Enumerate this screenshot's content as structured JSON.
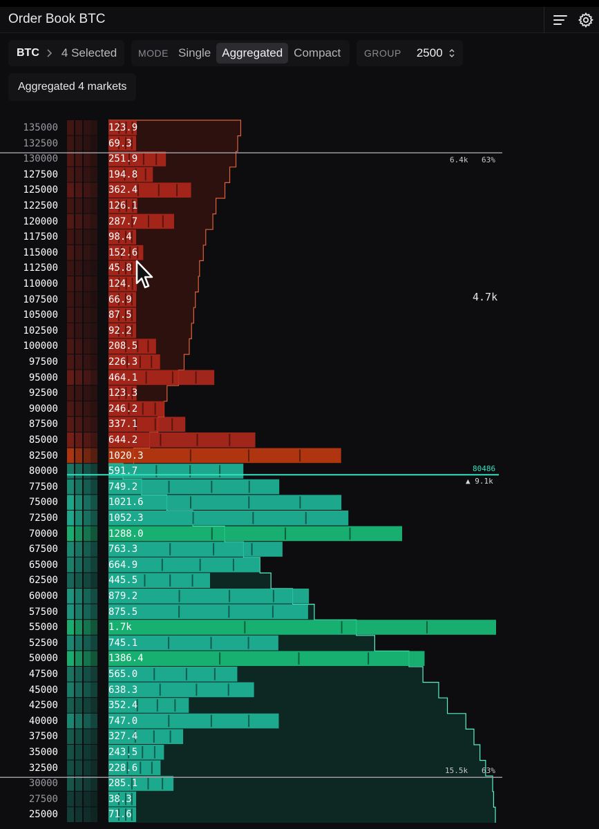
{
  "window": {
    "title": "Order Book BTC"
  },
  "toolbar": {
    "market": "BTC",
    "selection": "4 Selected",
    "mode_label": "MODE",
    "modes": [
      "Single",
      "Aggregated",
      "Compact"
    ],
    "active_mode": "Aggregated",
    "group_label": "GROUP",
    "group_value": "2500"
  },
  "badge": "Aggregated 4 markets",
  "asks": [
    {
      "price": "135000",
      "size": "123.9",
      "major": false
    },
    {
      "price": "132500",
      "size": "69.3",
      "major": false
    },
    {
      "price": "130000",
      "size": "251.9",
      "major": false
    },
    {
      "price": "127500",
      "size": "194.8",
      "major": true
    },
    {
      "price": "125000",
      "size": "362.4",
      "major": true
    },
    {
      "price": "122500",
      "size": "126.1",
      "major": true
    },
    {
      "price": "120000",
      "size": "287.7",
      "major": true
    },
    {
      "price": "117500",
      "size": "98.4",
      "major": true
    },
    {
      "price": "115000",
      "size": "152.6",
      "major": true
    },
    {
      "price": "112500",
      "size": "45.8",
      "major": true
    },
    {
      "price": "110000",
      "size": "124.",
      "major": true
    },
    {
      "price": "107500",
      "size": "66.9",
      "major": true
    },
    {
      "price": "105000",
      "size": "87.5",
      "major": true
    },
    {
      "price": "102500",
      "size": "92.2",
      "major": true
    },
    {
      "price": "100000",
      "size": "208.5",
      "major": true
    },
    {
      "price": "97500",
      "size": "226.3",
      "major": true
    },
    {
      "price": "95000",
      "size": "464.1",
      "major": true
    },
    {
      "price": "92500",
      "size": "123.3",
      "major": true
    },
    {
      "price": "90000",
      "size": "246.2",
      "major": true
    },
    {
      "price": "87500",
      "size": "337.1",
      "major": true
    },
    {
      "price": "85000",
      "size": "644.2",
      "major": true
    },
    {
      "price": "82500",
      "size": "1020.3",
      "major": true
    }
  ],
  "bids": [
    {
      "price": "80000",
      "size": "591.7",
      "major": true
    },
    {
      "price": "77500",
      "size": "749.2",
      "major": true
    },
    {
      "price": "75000",
      "size": "1021.6",
      "major": true
    },
    {
      "price": "72500",
      "size": "1052.3",
      "major": true
    },
    {
      "price": "70000",
      "size": "1288.0",
      "major": true
    },
    {
      "price": "67500",
      "size": "763.3",
      "major": true
    },
    {
      "price": "65000",
      "size": "664.9",
      "major": true
    },
    {
      "price": "62500",
      "size": "445.5",
      "major": true
    },
    {
      "price": "60000",
      "size": "879.2",
      "major": true
    },
    {
      "price": "57500",
      "size": "875.5",
      "major": true
    },
    {
      "price": "55000",
      "size": "1.7k",
      "major": true
    },
    {
      "price": "52500",
      "size": "745.1",
      "major": true
    },
    {
      "price": "50000",
      "size": "1386.4",
      "major": true
    },
    {
      "price": "47500",
      "size": "565.0",
      "major": true
    },
    {
      "price": "45000",
      "size": "638.3",
      "major": true
    },
    {
      "price": "42500",
      "size": "352.4",
      "major": true
    },
    {
      "price": "40000",
      "size": "747.0",
      "major": true
    },
    {
      "price": "37500",
      "size": "327.4",
      "major": true
    },
    {
      "price": "35000",
      "size": "243.5",
      "major": true
    },
    {
      "price": "32500",
      "size": "228.6",
      "major": true
    },
    {
      "price": "30000",
      "size": "285.1",
      "major": false
    },
    {
      "price": "27500",
      "size": "38.3",
      "major": false
    },
    {
      "price": "25000",
      "size": "71.6",
      "major": true
    }
  ],
  "annotations": {
    "ask_range_total": "6.4k",
    "ask_range_pct": "63%",
    "ask_depth_label": "4.7k",
    "mid_price": "80486",
    "bid_top_label": "▲ 9.1k",
    "bid_range_total": "15.5k",
    "bid_range_pct": "63%"
  },
  "colors": {
    "ask": "#b0281c",
    "ask_strong": "#c03a10",
    "bid": "#1fb89a",
    "bid_strong": "#1ac07a",
    "mid_line": "#34e0c0"
  }
}
